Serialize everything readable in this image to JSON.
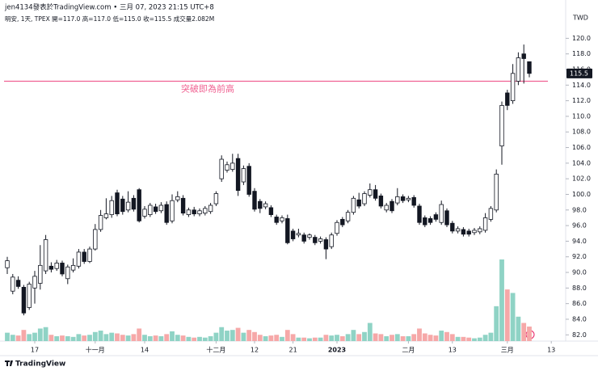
{
  "header": {
    "byline": "jen4134發表於TradingView.com • 三月 07, 2023 21:15 UTC+8",
    "info": "明安, 1天, TPEX  開=117.0 高=117.0 低=115.0 收=115.5 成交量2.082M"
  },
  "footer": {
    "brand": "TradingView"
  },
  "chart_data": {
    "type": "candlestick",
    "currency": "TWD",
    "last_price_label": "115.5",
    "annotation": "突破即為前高",
    "hline": {
      "value": 114.5,
      "color": "#f06292"
    },
    "up_color": "#ffffff",
    "down_color": "#131722",
    "edge_color": "#131722",
    "volume_up_color": "#8fd3c5",
    "volume_down_color": "#f6a8a8",
    "grid": false,
    "ylim": [
      81.2,
      121.8
    ],
    "yticks": [
      {
        "value": 82,
        "label": "82.0"
      },
      {
        "value": 84,
        "label": "84.0"
      },
      {
        "value": 86,
        "label": "86.0"
      },
      {
        "value": 88,
        "label": "88.0"
      },
      {
        "value": 90,
        "label": "90.0"
      },
      {
        "value": 92,
        "label": "92.0"
      },
      {
        "value": 94,
        "label": "94.0"
      },
      {
        "value": 96,
        "label": "96.0"
      },
      {
        "value": 98,
        "label": "98.0"
      },
      {
        "value": 100,
        "label": "100.0"
      },
      {
        "value": 102,
        "label": "102.0"
      },
      {
        "value": 104,
        "label": "104.0"
      },
      {
        "value": 106,
        "label": "106.0"
      },
      {
        "value": 108,
        "label": "108.0"
      },
      {
        "value": 110,
        "label": "110.0"
      },
      {
        "value": 112,
        "label": "112.0"
      },
      {
        "value": 114,
        "label": "114.0"
      },
      {
        "value": 116,
        "label": "116.0"
      },
      {
        "value": 118,
        "label": "118.0"
      },
      {
        "value": 120,
        "label": "120.0"
      }
    ],
    "categories": [
      null,
      null,
      null,
      null,
      null,
      "17",
      null,
      null,
      null,
      null,
      null,
      null,
      null,
      null,
      null,
      null,
      "十一月",
      null,
      null,
      null,
      null,
      null,
      null,
      null,
      null,
      "14",
      null,
      null,
      null,
      null,
      null,
      null,
      null,
      null,
      null,
      null,
      null,
      null,
      "十二月",
      null,
      null,
      null,
      null,
      null,
      null,
      "12",
      null,
      null,
      null,
      null,
      null,
      null,
      "21",
      null,
      null,
      null,
      null,
      null,
      null,
      null,
      "2023",
      null,
      null,
      null,
      null,
      null,
      null,
      null,
      null,
      null,
      null,
      null,
      null,
      "二月",
      null,
      null,
      null,
      null,
      null,
      null,
      null,
      "13",
      null,
      null,
      null,
      null,
      null,
      null,
      null,
      null,
      null,
      "三月",
      null,
      null,
      null,
      null,
      null,
      null,
      null,
      "13"
    ],
    "open": [
      90.6,
      87.6,
      89.0,
      88.1,
      85.5,
      88.0,
      88.6,
      90.2,
      90.8,
      90.5,
      91.2,
      89.2,
      90.3,
      90.8,
      92.6,
      91.4,
      93.0,
      95.5,
      97.0,
      97.4,
      100.2,
      99.4,
      98.0,
      99.5,
      100.6,
      97.2,
      97.4,
      98.4,
      97.9,
      98.7,
      96.6,
      99.3,
      99.5,
      97.4,
      98.0,
      97.5,
      97.6,
      97.8,
      98.8,
      102.0,
      103.1,
      103.2,
      104.6,
      101.6,
      103.6,
      100.4,
      99.1,
      98.4,
      98.3,
      97.1,
      96.6,
      96.9,
      95.3,
      94.8,
      94.8,
      94.5,
      94.5,
      94.0,
      94.2,
      93.3,
      95.0,
      96.8,
      96.6,
      97.7,
      99.3,
      98.8,
      99.9,
      100.6,
      99.8,
      98.0,
      99.1,
      98.9,
      99.7,
      99.3,
      99.6,
      98.5,
      97.0,
      96.9,
      97.4,
      96.4,
      97.9,
      96.3,
      95.3,
      95.5,
      95.3,
      95.1,
      95.2,
      95.4,
      96.8,
      98.0,
      106.2,
      113.0,
      112.0,
      114.5,
      118.0,
      117.0,
      null,
      null,
      null,
      null
    ],
    "high": [
      92.0,
      89.8,
      89.5,
      88.4,
      88.8,
      90.2,
      93.5,
      94.8,
      91.3,
      91.6,
      91.5,
      91.0,
      91.8,
      93.0,
      93.0,
      93.3,
      96.2,
      98.0,
      99.5,
      99.8,
      100.6,
      99.8,
      100.4,
      99.9,
      100.8,
      98.5,
      98.9,
      98.8,
      99.0,
      99.1,
      100.0,
      100.4,
      99.9,
      98.3,
      98.4,
      98.2,
      98.5,
      98.9,
      100.4,
      105.0,
      104.2,
      105.2,
      105.2,
      103.7,
      104.0,
      100.8,
      99.4,
      99.1,
      98.6,
      97.4,
      97.3,
      97.4,
      95.6,
      95.6,
      95.1,
      95.0,
      94.8,
      94.6,
      94.5,
      95.1,
      96.7,
      97.1,
      98.0,
      99.8,
      100.2,
      100.4,
      101.4,
      101.2,
      100.1,
      98.9,
      99.4,
      100.8,
      100.0,
      99.8,
      99.9,
      98.8,
      97.3,
      97.2,
      97.7,
      99.2,
      98.2,
      96.6,
      95.9,
      95.8,
      95.6,
      95.7,
      95.9,
      97.6,
      98.5,
      103.2,
      111.9,
      113.4,
      116.7,
      118.2,
      119.2,
      117.0,
      null,
      null,
      null,
      null
    ],
    "low": [
      89.8,
      87.2,
      87.9,
      84.5,
      85.2,
      86.0,
      87.8,
      89.8,
      90.0,
      90.2,
      89.5,
      88.5,
      90.0,
      90.5,
      91.1,
      91.2,
      92.8,
      95.2,
      96.8,
      97.0,
      97.2,
      97.4,
      97.7,
      97.8,
      96.4,
      96.9,
      97.1,
      97.5,
      97.6,
      96.1,
      96.3,
      99.0,
      97.3,
      97.1,
      97.2,
      97.2,
      97.3,
      97.5,
      98.5,
      101.6,
      102.8,
      102.9,
      99.8,
      101.2,
      99.7,
      97.8,
      97.6,
      98.1,
      97.1,
      96.1,
      96.3,
      93.6,
      94.0,
      94.5,
      93.7,
      94.2,
      93.5,
      93.7,
      91.7,
      93.0,
      94.7,
      95.8,
      96.3,
      97.4,
      98.2,
      98.5,
      99.6,
      99.2,
      98.2,
      97.7,
      97.6,
      98.6,
      98.9,
      99.0,
      98.3,
      96.1,
      95.8,
      96.1,
      96.5,
      96.1,
      95.8,
      95.0,
      95.0,
      94.6,
      94.6,
      94.8,
      94.9,
      95.1,
      96.5,
      97.7,
      103.8,
      110.8,
      111.6,
      114.0,
      114.2,
      115.0,
      null,
      null,
      null,
      null
    ],
    "close": [
      91.5,
      89.4,
      88.2,
      84.8,
      88.5,
      89.5,
      90.9,
      94.2,
      90.4,
      91.2,
      89.8,
      90.7,
      90.9,
      92.6,
      91.4,
      93.0,
      95.5,
      97.3,
      97.5,
      99.2,
      97.5,
      97.8,
      99.0,
      98.1,
      96.6,
      98.1,
      98.6,
      97.8,
      98.6,
      96.4,
      99.2,
      99.7,
      97.6,
      98.0,
      97.5,
      97.9,
      98.2,
      98.6,
      100.1,
      104.5,
      103.8,
      104.0,
      100.5,
      103.3,
      100.0,
      98.1,
      98.2,
      98.8,
      97.4,
      96.4,
      97.0,
      93.8,
      94.3,
      95.0,
      94.0,
      94.8,
      93.8,
      94.3,
      93.0,
      94.8,
      96.4,
      96.1,
      97.7,
      99.5,
      98.5,
      100.1,
      100.6,
      99.5,
      98.5,
      98.6,
      97.9,
      99.7,
      99.2,
      99.5,
      98.6,
      96.4,
      96.1,
      96.4,
      96.8,
      98.7,
      96.1,
      95.3,
      95.6,
      94.9,
      94.9,
      95.4,
      95.6,
      97.0,
      98.2,
      102.6,
      111.4,
      111.4,
      115.5,
      117.5,
      117.4,
      115.5,
      null,
      null,
      null,
      null
    ],
    "volume": [
      1.2,
      0.9,
      0.8,
      1.6,
      1.0,
      1.2,
      1.8,
      2.0,
      0.9,
      0.7,
      0.8,
      0.7,
      0.6,
      1.0,
      0.8,
      0.9,
      1.3,
      1.5,
      1.0,
      1.2,
      1.1,
      0.9,
      0.8,
      1.0,
      1.8,
      0.9,
      0.7,
      0.8,
      0.7,
      1.0,
      1.4,
      0.9,
      0.8,
      0.6,
      0.5,
      0.6,
      0.5,
      0.7,
      1.2,
      2.0,
      1.5,
      1.6,
      1.9,
      1.2,
      1.6,
      1.3,
      0.9,
      0.7,
      0.8,
      0.9,
      0.6,
      1.6,
      1.0,
      0.5,
      0.5,
      0.4,
      0.5,
      0.5,
      0.9,
      0.8,
      0.9,
      0.7,
      1.0,
      1.6,
      1.0,
      1.3,
      2.6,
      1.1,
      1.0,
      0.7,
      0.9,
      1.0,
      0.7,
      0.7,
      1.0,
      1.8,
      1.1,
      0.9,
      0.8,
      1.5,
      1.3,
      1.0,
      0.6,
      0.6,
      0.5,
      0.4,
      0.5,
      0.9,
      1.2,
      5.0,
      11.7,
      7.4,
      6.9,
      3.5,
      2.6,
      2.082,
      null,
      null,
      null,
      null
    ]
  }
}
